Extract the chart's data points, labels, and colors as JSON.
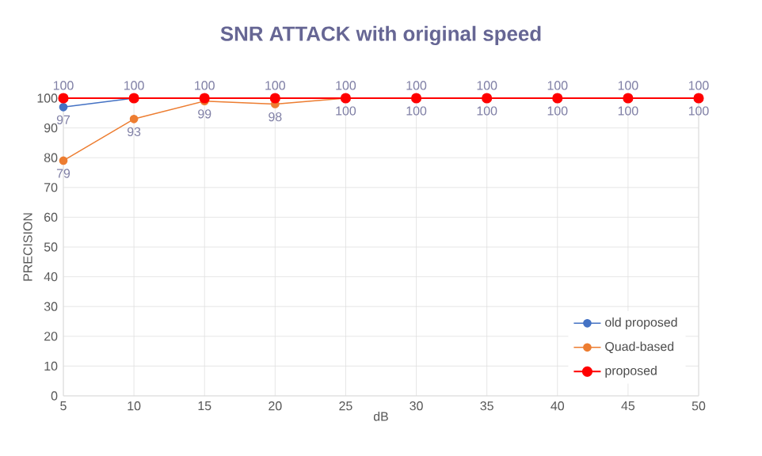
{
  "chart_data": {
    "type": "line",
    "title": "SNR ATTACK with original speed",
    "xlabel": "dB",
    "ylabel": "PRECISION",
    "x": [
      5,
      10,
      15,
      20,
      25,
      30,
      35,
      40,
      45,
      50
    ],
    "series": [
      {
        "name": "old proposed",
        "color": "#4472c4",
        "values": [
          97,
          100,
          null,
          null,
          null,
          null,
          null,
          null,
          null,
          null
        ],
        "value_labels": [
          "97",
          null,
          null,
          null,
          null,
          null,
          null,
          null,
          null,
          null
        ]
      },
      {
        "name": "Quad-based",
        "color": "#ed7d31",
        "values": [
          79,
          93,
          99,
          98,
          100,
          100,
          100,
          100,
          100,
          100
        ],
        "value_labels": [
          "79",
          "93",
          "99",
          "98",
          "100",
          "100",
          "100",
          "100",
          "100",
          "100"
        ]
      },
      {
        "name": "proposed",
        "color": "#ff0000",
        "values": [
          100,
          100,
          100,
          100,
          100,
          100,
          100,
          100,
          100,
          100
        ],
        "value_labels": [
          "100",
          "100",
          "100",
          "100",
          "100",
          "100",
          "100",
          "100",
          "100",
          "100"
        ]
      }
    ],
    "xlim": [
      5,
      50
    ],
    "xticks": [
      5,
      10,
      15,
      20,
      25,
      30,
      35,
      40,
      45,
      50
    ],
    "ylim": [
      0,
      100
    ],
    "yticks": [
      0,
      10,
      20,
      30,
      40,
      50,
      60,
      70,
      80,
      90,
      100
    ],
    "grid": true,
    "legend": "bottom right",
    "marker": "circle",
    "line_style": "solid"
  }
}
